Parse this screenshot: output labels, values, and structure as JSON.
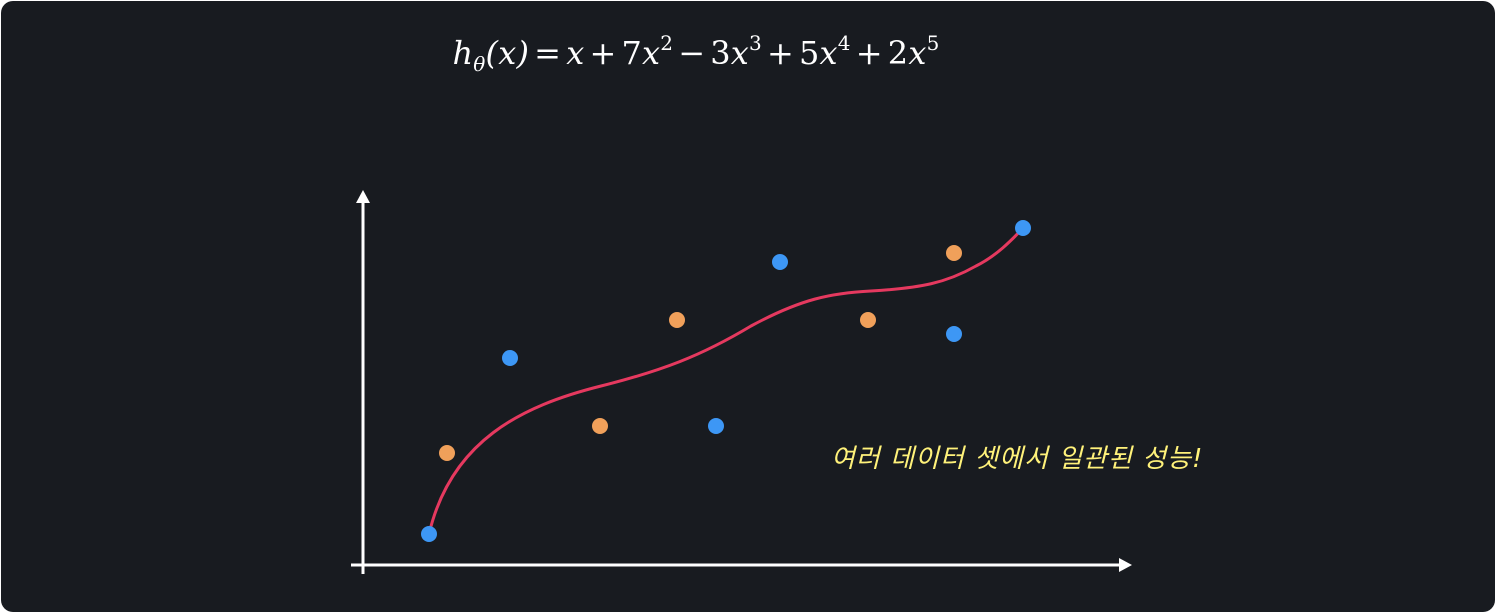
{
  "equation": {
    "h": "h",
    "theta": "θ",
    "lhs_tail": "(x)",
    "eq": "=",
    "t1": "x",
    "plus1": "+",
    "c2": "7",
    "x2": "x",
    "e2": "2",
    "minus": "−",
    "c3": "3",
    "x3": "x",
    "e3": "3",
    "plus2": "+",
    "c4": "5",
    "x4": "x",
    "e4": "4",
    "plus3": "+",
    "c5": "2",
    "x5": "x",
    "e5": "5"
  },
  "annotation": "여러 데이터 셋에서 일관된 성능!",
  "colors": {
    "background": "#181b20",
    "axis": "#ffffff",
    "curve": "#e5395f",
    "orange": "#f0a05a",
    "blue": "#3d97f5",
    "annotation": "#fff27a"
  }
}
